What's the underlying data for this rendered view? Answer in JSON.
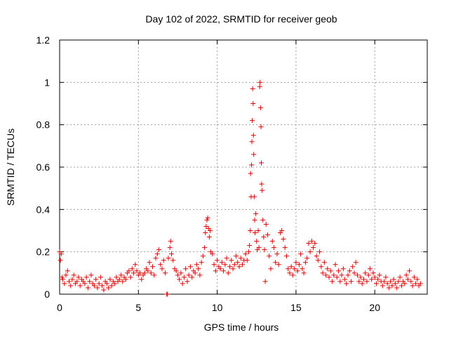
{
  "chart_data": {
    "type": "scatter",
    "title": "Day 102 of 2022, SRMTID for receiver geob",
    "xlabel": "GPS time / hours",
    "ylabel": "SRMTID / TECUs",
    "xlim": [
      0,
      23.33
    ],
    "ylim": [
      0,
      1.2
    ],
    "xticks": [
      0,
      5,
      10,
      15,
      20
    ],
    "xtick_labels": [
      "0",
      "5",
      "10",
      "15",
      "20"
    ],
    "yticks": [
      0,
      0.2,
      0.4,
      0.6,
      0.8,
      1.0,
      1.2
    ],
    "ytick_labels": [
      "0",
      "0.2",
      "0.4",
      "0.6",
      "0.8",
      "1",
      "1.2"
    ],
    "grid": true,
    "marker": "plus",
    "color": "#e00000",
    "series": [
      {
        "name": "SRMTID",
        "points": [
          [
            0.0,
            0.2
          ],
          [
            0.05,
            0.16
          ],
          [
            0.1,
            0.19
          ],
          [
            0.15,
            0.08
          ],
          [
            0.2,
            0.07
          ],
          [
            0.3,
            0.05
          ],
          [
            0.4,
            0.09
          ],
          [
            0.5,
            0.11
          ],
          [
            0.6,
            0.06
          ],
          [
            0.7,
            0.04
          ],
          [
            0.8,
            0.07
          ],
          [
            0.9,
            0.09
          ],
          [
            1.0,
            0.05
          ],
          [
            1.1,
            0.06
          ],
          [
            1.2,
            0.08
          ],
          [
            1.3,
            0.04
          ],
          [
            1.4,
            0.07
          ],
          [
            1.5,
            0.06
          ],
          [
            1.6,
            0.05
          ],
          [
            1.7,
            0.08
          ],
          [
            1.8,
            0.03
          ],
          [
            1.9,
            0.06
          ],
          [
            2.0,
            0.09
          ],
          [
            2.1,
            0.05
          ],
          [
            2.2,
            0.04
          ],
          [
            2.3,
            0.07
          ],
          [
            2.4,
            0.03
          ],
          [
            2.5,
            0.05
          ],
          [
            2.6,
            0.08
          ],
          [
            2.7,
            0.04
          ],
          [
            2.8,
            0.02
          ],
          [
            2.9,
            0.06
          ],
          [
            3.0,
            0.05
          ],
          [
            3.1,
            0.03
          ],
          [
            3.2,
            0.07
          ],
          [
            3.3,
            0.04
          ],
          [
            3.4,
            0.06
          ],
          [
            3.5,
            0.05
          ],
          [
            3.6,
            0.08
          ],
          [
            3.7,
            0.06
          ],
          [
            3.8,
            0.07
          ],
          [
            3.9,
            0.09
          ],
          [
            4.0,
            0.06
          ],
          [
            4.1,
            0.08
          ],
          [
            4.2,
            0.07
          ],
          [
            4.3,
            0.1
          ],
          [
            4.4,
            0.11
          ],
          [
            4.5,
            0.08
          ],
          [
            4.6,
            0.12
          ],
          [
            4.7,
            0.1
          ],
          [
            4.8,
            0.14
          ],
          [
            4.9,
            0.11
          ],
          [
            5.0,
            0.09
          ],
          [
            5.1,
            0.1
          ],
          [
            5.2,
            0.07
          ],
          [
            5.3,
            0.09
          ],
          [
            5.4,
            0.1
          ],
          [
            5.5,
            0.12
          ],
          [
            5.6,
            0.11
          ],
          [
            5.7,
            0.15
          ],
          [
            5.8,
            0.1
          ],
          [
            5.9,
            0.13
          ],
          [
            6.0,
            0.09
          ],
          [
            6.1,
            0.17
          ],
          [
            6.2,
            0.19
          ],
          [
            6.3,
            0.21
          ],
          [
            6.4,
            0.14
          ],
          [
            6.5,
            0.12
          ],
          [
            6.6,
            0.16
          ],
          [
            6.7,
            0.1
          ],
          [
            6.8,
            0.0
          ],
          [
            6.85,
            0.0
          ],
          [
            6.9,
            0.17
          ],
          [
            7.0,
            0.22
          ],
          [
            7.05,
            0.25
          ],
          [
            7.1,
            0.19
          ],
          [
            7.2,
            0.16
          ],
          [
            7.3,
            0.12
          ],
          [
            7.4,
            0.11
          ],
          [
            7.5,
            0.09
          ],
          [
            7.6,
            0.07
          ],
          [
            7.7,
            0.1
          ],
          [
            7.8,
            0.05
          ],
          [
            7.9,
            0.08
          ],
          [
            8.0,
            0.12
          ],
          [
            8.1,
            0.06
          ],
          [
            8.2,
            0.09
          ],
          [
            8.3,
            0.13
          ],
          [
            8.4,
            0.08
          ],
          [
            8.5,
            0.11
          ],
          [
            8.6,
            0.1
          ],
          [
            8.7,
            0.14
          ],
          [
            8.8,
            0.12
          ],
          [
            8.9,
            0.09
          ],
          [
            9.0,
            0.15
          ],
          [
            9.1,
            0.18
          ],
          [
            9.2,
            0.22
          ],
          [
            9.25,
            0.29
          ],
          [
            9.3,
            0.32
          ],
          [
            9.35,
            0.35
          ],
          [
            9.4,
            0.36
          ],
          [
            9.45,
            0.31
          ],
          [
            9.5,
            0.27
          ],
          [
            9.55,
            0.3
          ],
          [
            9.6,
            0.2
          ],
          [
            9.7,
            0.19
          ],
          [
            9.8,
            0.14
          ],
          [
            9.9,
            0.11
          ],
          [
            10.0,
            0.16
          ],
          [
            10.1,
            0.13
          ],
          [
            10.2,
            0.12
          ],
          [
            10.3,
            0.15
          ],
          [
            10.4,
            0.11
          ],
          [
            10.5,
            0.14
          ],
          [
            10.6,
            0.17
          ],
          [
            10.7,
            0.1
          ],
          [
            10.8,
            0.13
          ],
          [
            10.9,
            0.16
          ],
          [
            11.0,
            0.12
          ],
          [
            11.1,
            0.14
          ],
          [
            11.2,
            0.18
          ],
          [
            11.3,
            0.15
          ],
          [
            11.4,
            0.13
          ],
          [
            11.5,
            0.17
          ],
          [
            11.6,
            0.14
          ],
          [
            11.7,
            0.16
          ],
          [
            11.8,
            0.19
          ],
          [
            11.9,
            0.16
          ],
          [
            12.0,
            0.2
          ],
          [
            12.05,
            0.23
          ],
          [
            12.1,
            0.3
          ],
          [
            12.12,
            0.57
          ],
          [
            12.15,
            0.46
          ],
          [
            12.18,
            0.61
          ],
          [
            12.2,
            0.72
          ],
          [
            12.22,
            0.82
          ],
          [
            12.25,
            0.97
          ],
          [
            12.28,
            0.9
          ],
          [
            12.3,
            0.75
          ],
          [
            12.32,
            0.66
          ],
          [
            12.35,
            0.46
          ],
          [
            12.38,
            0.35
          ],
          [
            12.4,
            0.29
          ],
          [
            12.45,
            0.38
          ],
          [
            12.5,
            0.25
          ],
          [
            12.55,
            0.21
          ],
          [
            12.6,
            0.3
          ],
          [
            12.65,
            0.22
          ],
          [
            12.7,
            0.98
          ],
          [
            12.72,
            1.0
          ],
          [
            12.75,
            0.88
          ],
          [
            12.78,
            0.79
          ],
          [
            12.8,
            0.62
          ],
          [
            12.82,
            0.52
          ],
          [
            12.85,
            0.49
          ],
          [
            12.9,
            0.35
          ],
          [
            12.95,
            0.27
          ],
          [
            13.0,
            0.21
          ],
          [
            13.05,
            0.06
          ],
          [
            13.1,
            0.33
          ],
          [
            13.2,
            0.28
          ],
          [
            13.3,
            0.18
          ],
          [
            13.4,
            0.12
          ],
          [
            13.5,
            0.25
          ],
          [
            13.6,
            0.22
          ],
          [
            13.7,
            0.15
          ],
          [
            13.8,
            0.19
          ],
          [
            13.9,
            0.14
          ],
          [
            14.0,
            0.29
          ],
          [
            14.1,
            0.3
          ],
          [
            14.2,
            0.26
          ],
          [
            14.3,
            0.22
          ],
          [
            14.4,
            0.18
          ],
          [
            14.5,
            0.12
          ],
          [
            14.6,
            0.1
          ],
          [
            14.7,
            0.13
          ],
          [
            14.8,
            0.09
          ],
          [
            14.9,
            0.12
          ],
          [
            15.0,
            0.15
          ],
          [
            15.1,
            0.11
          ],
          [
            15.2,
            0.14
          ],
          [
            15.3,
            0.19
          ],
          [
            15.4,
            0.12
          ],
          [
            15.5,
            0.1
          ],
          [
            15.6,
            0.15
          ],
          [
            15.7,
            0.17
          ],
          [
            15.8,
            0.24
          ],
          [
            15.9,
            0.2
          ],
          [
            16.0,
            0.25
          ],
          [
            16.1,
            0.22
          ],
          [
            16.2,
            0.24
          ],
          [
            16.3,
            0.18
          ],
          [
            16.4,
            0.16
          ],
          [
            16.5,
            0.2
          ],
          [
            16.6,
            0.13
          ],
          [
            16.7,
            0.1
          ],
          [
            16.8,
            0.15
          ],
          [
            16.9,
            0.09
          ],
          [
            17.0,
            0.12
          ],
          [
            17.1,
            0.08
          ],
          [
            17.2,
            0.11
          ],
          [
            17.3,
            0.06
          ],
          [
            17.4,
            0.09
          ],
          [
            17.5,
            0.14
          ],
          [
            17.6,
            0.08
          ],
          [
            17.7,
            0.11
          ],
          [
            17.8,
            0.06
          ],
          [
            17.9,
            0.09
          ],
          [
            18.0,
            0.12
          ],
          [
            18.1,
            0.07
          ],
          [
            18.2,
            0.05
          ],
          [
            18.3,
            0.09
          ],
          [
            18.4,
            0.11
          ],
          [
            18.5,
            0.06
          ],
          [
            18.6,
            0.13
          ],
          [
            18.7,
            0.1
          ],
          [
            18.8,
            0.15
          ],
          [
            18.9,
            0.09
          ],
          [
            19.0,
            0.06
          ],
          [
            19.1,
            0.08
          ],
          [
            19.2,
            0.05
          ],
          [
            19.3,
            0.07
          ],
          [
            19.4,
            0.1
          ],
          [
            19.5,
            0.06
          ],
          [
            19.6,
            0.09
          ],
          [
            19.7,
            0.12
          ],
          [
            19.8,
            0.07
          ],
          [
            19.9,
            0.1
          ],
          [
            20.0,
            0.08
          ],
          [
            20.1,
            0.05
          ],
          [
            20.2,
            0.07
          ],
          [
            20.3,
            0.09
          ],
          [
            20.4,
            0.06
          ],
          [
            20.5,
            0.04
          ],
          [
            20.6,
            0.06
          ],
          [
            20.7,
            0.08
          ],
          [
            20.8,
            0.05
          ],
          [
            20.9,
            0.03
          ],
          [
            21.0,
            0.06
          ],
          [
            21.1,
            0.04
          ],
          [
            21.2,
            0.07
          ],
          [
            21.3,
            0.05
          ],
          [
            21.4,
            0.03
          ],
          [
            21.5,
            0.06
          ],
          [
            21.6,
            0.08
          ],
          [
            21.7,
            0.04
          ],
          [
            21.8,
            0.06
          ],
          [
            21.9,
            0.05
          ],
          [
            22.0,
            0.09
          ],
          [
            22.1,
            0.07
          ],
          [
            22.2,
            0.11
          ],
          [
            22.3,
            0.06
          ],
          [
            22.4,
            0.04
          ],
          [
            22.5,
            0.08
          ],
          [
            22.6,
            0.05
          ],
          [
            22.7,
            0.07
          ],
          [
            22.8,
            0.04
          ],
          [
            22.9,
            0.05
          ]
        ]
      }
    ]
  }
}
